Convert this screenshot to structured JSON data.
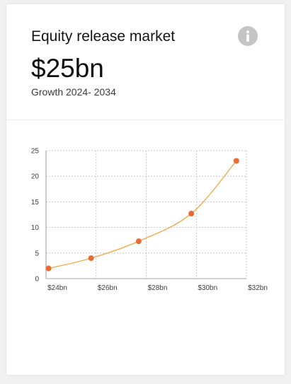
{
  "card": {
    "title": "Equity release market",
    "value": "$25bn",
    "subtitle": "Growth 2024- 2034",
    "info_icon": "info-icon"
  },
  "chart_data": {
    "type": "line",
    "title": "",
    "xlabel": "",
    "ylabel": "",
    "x_ticks": [
      "$24bn",
      "$26bn",
      "$28bn",
      "$30bn",
      "$32bn"
    ],
    "y_ticks": [
      "25",
      "20",
      "15",
      "10",
      "5",
      "0"
    ],
    "xlim": [
      0,
      4
    ],
    "ylim": [
      0,
      25
    ],
    "grid": true,
    "points": [
      {
        "x": 0.05,
        "y": 2
      },
      {
        "x": 0.9,
        "y": 4
      },
      {
        "x": 1.85,
        "y": 7.3
      },
      {
        "x": 2.9,
        "y": 12.7
      },
      {
        "x": 3.8,
        "y": 23
      }
    ],
    "colors": {
      "line": "#f0a640",
      "marker": "#ea6a33",
      "grid": "#bdbdbd",
      "axis": "#8a8a8a",
      "icon": "#c4c4c4"
    }
  }
}
